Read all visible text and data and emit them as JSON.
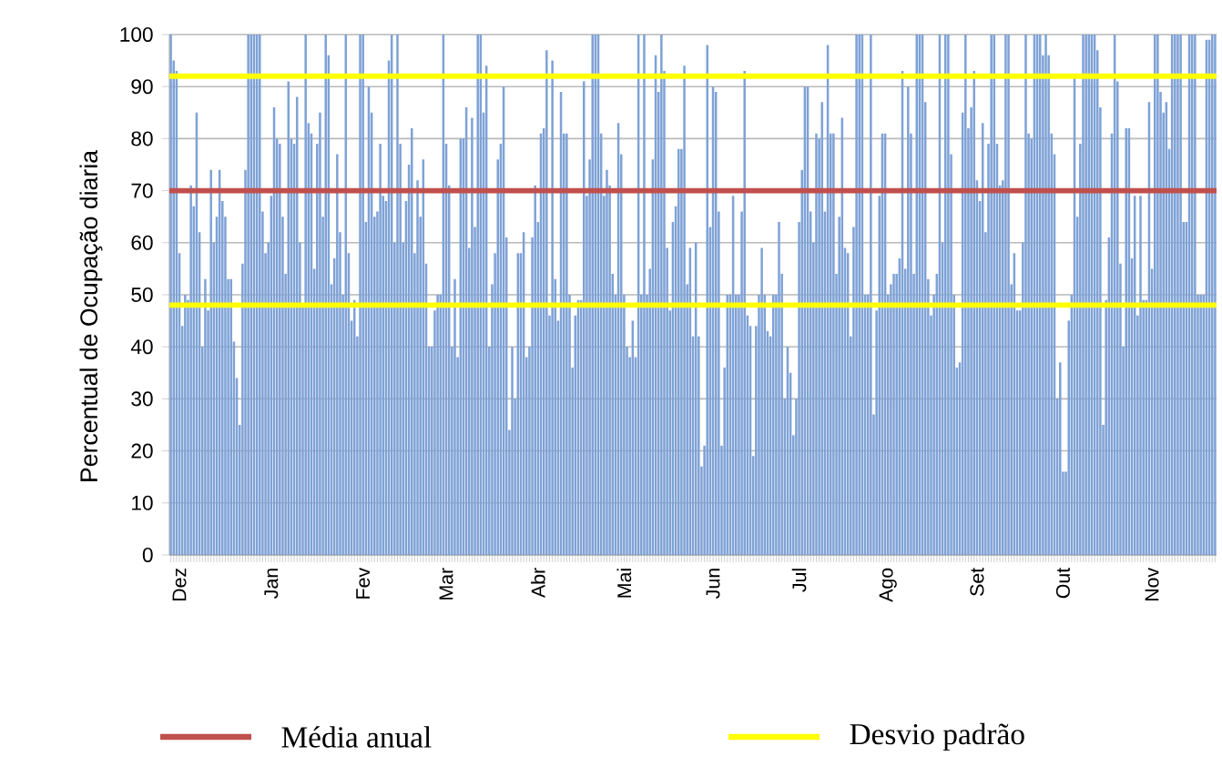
{
  "chart_data": {
    "type": "bar",
    "ylabel": "Percentual de Ocupação diaria",
    "categories": [
      null,
      null,
      null,
      "Dez",
      null,
      null,
      null,
      null,
      null,
      null,
      null,
      null,
      null,
      null,
      null,
      null,
      null,
      null,
      null,
      null,
      null,
      null,
      null,
      null,
      null,
      null,
      null,
      null,
      null,
      null,
      null,
      null,
      null,
      null,
      null,
      "Jan",
      null,
      null,
      null,
      null,
      null,
      null,
      null,
      null,
      null,
      null,
      null,
      null,
      null,
      null,
      null,
      null,
      null,
      null,
      null,
      null,
      null,
      null,
      null,
      null,
      null,
      null,
      null,
      null,
      null,
      null,
      null,
      "Fev",
      null,
      null,
      null,
      null,
      null,
      null,
      null,
      null,
      null,
      null,
      null,
      null,
      null,
      null,
      null,
      null,
      null,
      null,
      null,
      null,
      null,
      null,
      null,
      null,
      null,
      null,
      null,
      null,
      "Mar",
      null,
      null,
      null,
      null,
      null,
      null,
      null,
      null,
      null,
      null,
      null,
      null,
      null,
      null,
      null,
      null,
      null,
      null,
      null,
      null,
      null,
      null,
      null,
      null,
      null,
      null,
      null,
      null,
      null,
      null,
      null,
      "Abr",
      null,
      null,
      null,
      null,
      null,
      null,
      null,
      null,
      null,
      null,
      null,
      null,
      null,
      null,
      null,
      null,
      null,
      null,
      null,
      null,
      null,
      null,
      null,
      null,
      null,
      null,
      null,
      null,
      null,
      "Mai",
      null,
      null,
      null,
      null,
      null,
      null,
      null,
      null,
      null,
      null,
      null,
      null,
      null,
      null,
      null,
      null,
      null,
      null,
      null,
      null,
      null,
      null,
      null,
      null,
      null,
      null,
      null,
      null,
      null,
      null,
      "Jun",
      null,
      null,
      null,
      null,
      null,
      null,
      null,
      null,
      null,
      null,
      null,
      null,
      null,
      null,
      null,
      null,
      null,
      null,
      null,
      null,
      null,
      null,
      null,
      null,
      null,
      null,
      null,
      null,
      null,
      "Jul",
      null,
      null,
      null,
      null,
      null,
      null,
      null,
      null,
      null,
      null,
      null,
      null,
      null,
      null,
      null,
      null,
      null,
      null,
      null,
      null,
      null,
      null,
      null,
      null,
      null,
      null,
      null,
      null,
      null,
      null,
      "Ago",
      null,
      null,
      null,
      null,
      null,
      null,
      null,
      null,
      null,
      null,
      null,
      null,
      null,
      null,
      null,
      null,
      null,
      null,
      null,
      null,
      null,
      null,
      null,
      null,
      null,
      null,
      null,
      null,
      null,
      null,
      "Set",
      null,
      null,
      null,
      null,
      null,
      null,
      null,
      null,
      null,
      null,
      null,
      null,
      null,
      null,
      null,
      null,
      null,
      null,
      null,
      null,
      null,
      null,
      null,
      null,
      null,
      null,
      null,
      null,
      null,
      "Out",
      null,
      null,
      null,
      null,
      null,
      null,
      null,
      null,
      null,
      null,
      null,
      null,
      null,
      null,
      null,
      null,
      null,
      null,
      null,
      null,
      null,
      null,
      null,
      null,
      null,
      null,
      null,
      null,
      null,
      null,
      "Nov",
      null,
      null,
      null,
      null,
      null,
      null,
      null,
      null,
      null,
      null,
      null,
      null,
      null,
      null,
      null,
      null,
      null,
      null,
      null,
      null,
      null,
      null
    ],
    "values": [
      100,
      95,
      93,
      58,
      44,
      50,
      49,
      71,
      67,
      85,
      62,
      40,
      53,
      47,
      74,
      60,
      65,
      74,
      68,
      65,
      53,
      53,
      41,
      34,
      25,
      56,
      74,
      100,
      100,
      100,
      100,
      100,
      66,
      58,
      60,
      69,
      86,
      80,
      79,
      65,
      54,
      91,
      80,
      79,
      88,
      60,
      48,
      100,
      83,
      81,
      55,
      79,
      85,
      65,
      100,
      96,
      52,
      57,
      77,
      62,
      50,
      100,
      58,
      45,
      49,
      42,
      100,
      100,
      64,
      90,
      85,
      65,
      66,
      79,
      69,
      68,
      95,
      100,
      60,
      100,
      79,
      60,
      68,
      75,
      82,
      58,
      72,
      65,
      76,
      56,
      40,
      40,
      47,
      50,
      50,
      100,
      79,
      71,
      40,
      53,
      38,
      80,
      80,
      86,
      59,
      84,
      63,
      100,
      100,
      85,
      94,
      40,
      52,
      58,
      76,
      79,
      90,
      61,
      24,
      40,
      30,
      58,
      58,
      62,
      38,
      40,
      61,
      71,
      64,
      81,
      82,
      97,
      46,
      95,
      53,
      45,
      89,
      81,
      81,
      50,
      36,
      46,
      49,
      49,
      91,
      69,
      76,
      100,
      100,
      100,
      81,
      69,
      74,
      71,
      54,
      50,
      83,
      77,
      50,
      40,
      38,
      45,
      38,
      100,
      50,
      100,
      50,
      55,
      76,
      96,
      89,
      100,
      93,
      59,
      47,
      64,
      67,
      78,
      78,
      94,
      52,
      59,
      42,
      60,
      42,
      17,
      21,
      98,
      63,
      90,
      89,
      66,
      21,
      36,
      50,
      50,
      69,
      50,
      50,
      66,
      93,
      46,
      44,
      19,
      44,
      50,
      59,
      50,
      43,
      42,
      50,
      50,
      64,
      54,
      30,
      40,
      35,
      23,
      30,
      64,
      74,
      90,
      90,
      66,
      60,
      81,
      80,
      87,
      66,
      98,
      81,
      81,
      54,
      65,
      84,
      59,
      58,
      42,
      63,
      100,
      100,
      100,
      50,
      50,
      100,
      27,
      47,
      69,
      81,
      81,
      50,
      52,
      54,
      54,
      57,
      93,
      55,
      90,
      81,
      54,
      100,
      100,
      100,
      87,
      53,
      46,
      50,
      54,
      100,
      60,
      100,
      100,
      77,
      50,
      36,
      37,
      85,
      100,
      82,
      86,
      93,
      72,
      68,
      83,
      62,
      79,
      100,
      100,
      79,
      71,
      72,
      100,
      100,
      52,
      58,
      47,
      47,
      60,
      100,
      81,
      80,
      100,
      100,
      100,
      96,
      100,
      96,
      81,
      77,
      30,
      37,
      16,
      16,
      45,
      50,
      92,
      65,
      79,
      100,
      100,
      100,
      100,
      100,
      97,
      86,
      25,
      49,
      61,
      81,
      100,
      91,
      56,
      40,
      82,
      82,
      57,
      69,
      46,
      69,
      49,
      49,
      87,
      55,
      100,
      100,
      89,
      85,
      87,
      78,
      100,
      100,
      100,
      100,
      64,
      64,
      100,
      100,
      100,
      50,
      50,
      50,
      99,
      99,
      100,
      100
    ],
    "color": "#7fa2d6",
    "ylim": [
      0,
      100
    ],
    "yticks": [
      0,
      10,
      20,
      30,
      40,
      50,
      60,
      70,
      80,
      90,
      100
    ],
    "grid": "y",
    "legend": "bottom",
    "ref_lines": [
      {
        "axis": "y",
        "value": 70,
        "label": "Média anual",
        "color": "#c0504d"
      },
      {
        "axis": "y",
        "value": 92,
        "label": "Desvio padrão",
        "color": "#ffff00"
      },
      {
        "axis": "y",
        "value": 48,
        "color": "#ffff00"
      }
    ]
  }
}
